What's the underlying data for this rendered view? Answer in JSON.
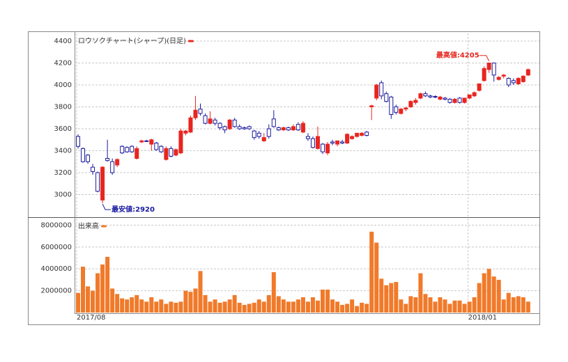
{
  "chart_data": [
    {
      "type": "candlestick",
      "legend": "ロウソクチャート(シャープ)(日足)",
      "up_color": "#e8251f",
      "down_color": "#1a1aa0",
      "ylim": [
        2800,
        4470
      ],
      "yticks": [
        3000,
        3200,
        3400,
        3600,
        3800,
        4000,
        4200,
        4400
      ],
      "grid": true,
      "open": [
        3530,
        3420,
        3360,
        3250,
        3200,
        2950,
        3330,
        3300,
        3270,
        3440,
        3430,
        3440,
        3330,
        3480,
        3490,
        3460,
        3470,
        3440,
        3320,
        3420,
        3360,
        3380,
        3560,
        3570,
        3700,
        3780,
        3720,
        3650,
        3680,
        3650,
        3620,
        3600,
        3680,
        3620,
        3610,
        3620,
        3580,
        3560,
        3490,
        3600,
        3690,
        3610,
        3590,
        3610,
        3590,
        3640,
        3570,
        3530,
        3510,
        3420,
        3460,
        3380,
        3480,
        3460,
        3480,
        3470,
        3510,
        3530,
        3540,
        3570,
        3800,
        3880,
        4020,
        3920,
        3890,
        3800,
        3740,
        3780,
        3800,
        3840,
        3880,
        3920,
        3900,
        3895,
        3870,
        3880,
        3870,
        3840,
        3880,
        3840,
        3880,
        3900,
        3950,
        4040,
        4140,
        4200,
        4050,
        4080,
        4060,
        4040,
        4010,
        4030,
        4090
      ],
      "high": [
        3550,
        3430,
        3370,
        3280,
        3210,
        3260,
        3500,
        3330,
        3330,
        3450,
        3440,
        3450,
        3440,
        3500,
        3500,
        3510,
        3480,
        3450,
        3440,
        3440,
        3420,
        3600,
        3590,
        3720,
        3900,
        3830,
        3740,
        3760,
        3700,
        3660,
        3630,
        3690,
        3700,
        3640,
        3620,
        3630,
        3590,
        3580,
        3560,
        3640,
        3770,
        3620,
        3620,
        3620,
        3640,
        3660,
        3670,
        3560,
        3530,
        3620,
        3470,
        3480,
        3500,
        3490,
        3500,
        3560,
        3540,
        3560,
        3570,
        3580,
        3820,
        4010,
        4040,
        3940,
        3900,
        3820,
        3790,
        3800,
        3860,
        3880,
        3930,
        3940,
        3910,
        3905,
        3900,
        3890,
        3880,
        3880,
        3890,
        3880,
        3910,
        3940,
        4010,
        4170,
        4205,
        4205,
        4080,
        4100,
        4070,
        4060,
        4070,
        4090,
        4150
      ],
      "low": [
        3420,
        3290,
        3280,
        3180,
        3020,
        2920,
        3300,
        3180,
        3250,
        3370,
        3380,
        3380,
        3320,
        3470,
        3480,
        3400,
        3400,
        3380,
        3310,
        3340,
        3350,
        3370,
        3540,
        3560,
        3680,
        3720,
        3640,
        3640,
        3630,
        3590,
        3560,
        3590,
        3610,
        3590,
        3590,
        3590,
        3500,
        3510,
        3480,
        3510,
        3610,
        3580,
        3580,
        3580,
        3580,
        3580,
        3560,
        3490,
        3420,
        3410,
        3370,
        3360,
        3450,
        3440,
        3460,
        3460,
        3500,
        3520,
        3530,
        3530,
        3680,
        3860,
        3870,
        3840,
        3690,
        3730,
        3730,
        3760,
        3790,
        3820,
        3870,
        3890,
        3880,
        3880,
        3860,
        3860,
        3830,
        3830,
        3830,
        3830,
        3870,
        3890,
        3940,
        4030,
        4110,
        4030,
        4040,
        4060,
        3980,
        4000,
        4000,
        4020,
        4080
      ],
      "close": [
        3440,
        3300,
        3300,
        3210,
        3030,
        3250,
        3310,
        3200,
        3320,
        3380,
        3390,
        3390,
        3420,
        3490,
        3485,
        3500,
        3410,
        3390,
        3420,
        3350,
        3410,
        3580,
        3580,
        3700,
        3770,
        3740,
        3650,
        3690,
        3650,
        3610,
        3590,
        3680,
        3620,
        3600,
        3600,
        3600,
        3520,
        3530,
        3520,
        3530,
        3620,
        3590,
        3610,
        3590,
        3620,
        3590,
        3650,
        3510,
        3430,
        3530,
        3390,
        3460,
        3470,
        3490,
        3470,
        3550,
        3530,
        3560,
        3560,
        3540,
        3810,
        4000,
        3900,
        3850,
        3730,
        3750,
        3780,
        3790,
        3850,
        3860,
        3920,
        3900,
        3890,
        3890,
        3890,
        3870,
        3840,
        3870,
        3840,
        3880,
        3910,
        3930,
        4010,
        4150,
        4200,
        4090,
        4070,
        4090,
        4000,
        4020,
        4060,
        4080,
        4140
      ],
      "annotations": [
        {
          "text": "最高値:4205",
          "value": 4205,
          "index": 84,
          "color": "#e8251f"
        },
        {
          "text": "最安値:2920",
          "value": 2920,
          "index": 5,
          "color": "#1a1aa0"
        }
      ]
    },
    {
      "type": "bar",
      "legend": "出来高",
      "color": "#f07a2a",
      "ylim": [
        0,
        8600000
      ],
      "yticks": [
        2000000,
        4000000,
        6000000,
        8000000
      ],
      "grid": true,
      "categories": [
        "2017/08",
        null,
        null,
        null,
        null,
        null,
        null,
        null,
        null,
        null,
        null,
        null,
        null,
        null,
        null,
        null,
        null,
        null,
        null,
        null,
        null,
        null,
        null,
        null,
        null,
        null,
        null,
        null,
        null,
        null,
        null,
        null,
        null,
        null,
        null,
        null,
        null,
        null,
        null,
        null,
        null,
        null,
        null,
        null,
        null,
        null,
        null,
        null,
        null,
        null,
        null,
        null,
        null,
        null,
        null,
        null,
        null,
        null,
        null,
        null,
        null,
        null,
        null,
        null,
        null,
        null,
        null,
        null,
        null,
        null,
        null,
        null,
        null,
        null,
        null,
        null,
        null,
        null,
        null,
        null,
        "2018/01",
        null,
        null,
        null,
        null,
        null,
        null,
        null,
        null,
        null,
        null,
        null,
        null
      ],
      "values": [
        1800000,
        4200000,
        2400000,
        2000000,
        3600000,
        4400000,
        5100000,
        2200000,
        1700000,
        1300000,
        1200000,
        1400000,
        1600000,
        1200000,
        1000000,
        1400000,
        1000000,
        1200000,
        800000,
        1000000,
        900000,
        1000000,
        2000000,
        1900000,
        2200000,
        3800000,
        1600000,
        1000000,
        1200000,
        900000,
        1000000,
        1200000,
        1600000,
        900000,
        700000,
        800000,
        900000,
        1200000,
        1000000,
        1600000,
        3700000,
        1500000,
        1200000,
        1000000,
        1000000,
        1200000,
        1400000,
        1000000,
        1400000,
        1100000,
        2100000,
        2100000,
        1200000,
        1000000,
        700000,
        800000,
        1200000,
        600000,
        900000,
        800000,
        7400000,
        6400000,
        3100000,
        2500000,
        2700000,
        2800000,
        1200000,
        800000,
        1500000,
        1400000,
        3600000,
        1700000,
        1400000,
        1000000,
        1400000,
        1200000,
        800000,
        1100000,
        1100000,
        800000,
        1000000,
        1400000,
        2700000,
        3600000,
        4000000,
        3300000,
        3000000,
        1200000,
        1800000,
        1400000,
        1500000,
        1400000,
        1000000
      ]
    }
  ]
}
